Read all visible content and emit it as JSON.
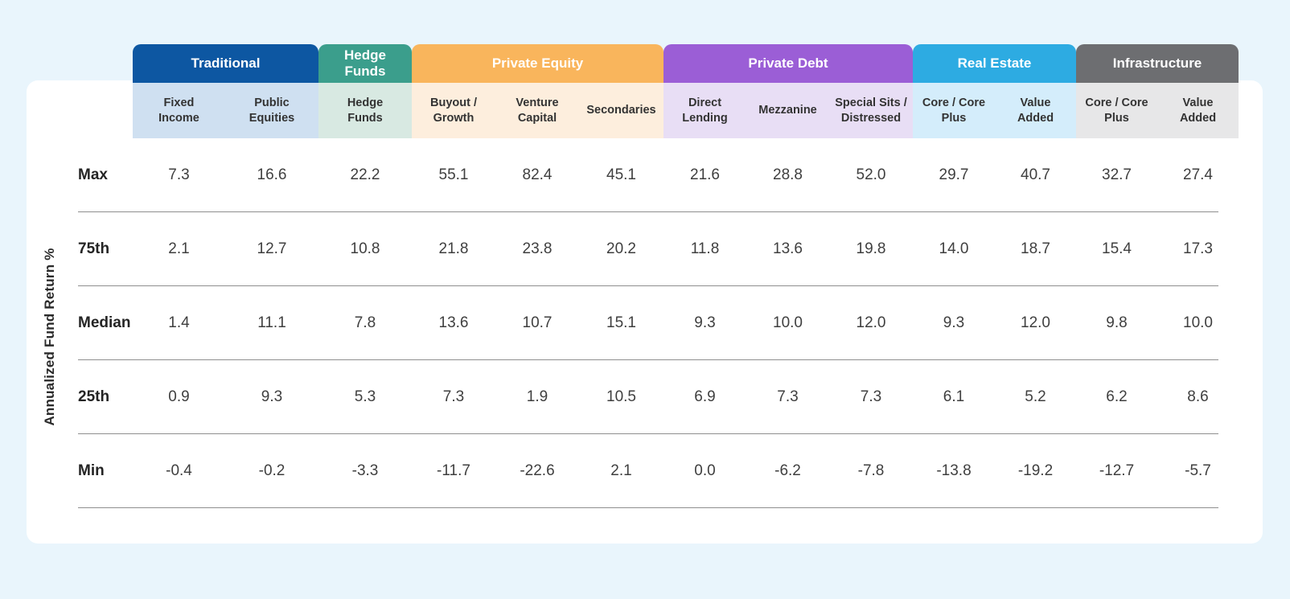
{
  "chart_data": {
    "type": "table",
    "title": "",
    "ylabel": "Annualized Fund Return %",
    "legend": "none",
    "groups": [
      {
        "id": "traditional",
        "label": "Traditional",
        "color": "#0d57a2",
        "tint": "#cfe0f1",
        "columns": [
          "Fixed\nIncome",
          "Public\nEquities"
        ]
      },
      {
        "id": "hedge-funds",
        "label": "Hedge\nFunds",
        "color": "#3b9e8c",
        "tint": "#d8e9e2",
        "columns": [
          "Hedge\nFunds"
        ]
      },
      {
        "id": "private-equity",
        "label": "Private Equity",
        "color": "#f9b55c",
        "tint": "#fdeedd",
        "columns": [
          "Buyout /\nGrowth",
          "Venture\nCapital",
          "Secondaries"
        ]
      },
      {
        "id": "private-debt",
        "label": "Private Debt",
        "color": "#9b5ed6",
        "tint": "#e8def5",
        "columns": [
          "Direct\nLending",
          "Mezzanine",
          "Special Sits /\nDistressed"
        ]
      },
      {
        "id": "real-estate",
        "label": "Real Estate",
        "color": "#2dabe2",
        "tint": "#d4edfb",
        "columns": [
          "Core / Core\nPlus",
          "Value\nAdded"
        ]
      },
      {
        "id": "infrastructure",
        "label": "Infrastructure",
        "color": "#6d6e71",
        "tint": "#e7e7e8",
        "columns": [
          "Core / Core\nPlus",
          "Value\nAdded"
        ]
      }
    ],
    "rows": [
      {
        "label": "Max",
        "values": [
          "7.3",
          "16.6",
          "22.2",
          "55.1",
          "82.4",
          "45.1",
          "21.6",
          "28.8",
          "52.0",
          "29.7",
          "40.7",
          "32.7",
          "27.4"
        ]
      },
      {
        "label": "75th",
        "values": [
          "2.1",
          "12.7",
          "10.8",
          "21.8",
          "23.8",
          "20.2",
          "11.8",
          "13.6",
          "19.8",
          "14.0",
          "18.7",
          "15.4",
          "17.3"
        ]
      },
      {
        "label": "Median",
        "values": [
          "1.4",
          "11.1",
          "7.8",
          "13.6",
          "10.7",
          "15.1",
          "9.3",
          "10.0",
          "12.0",
          "9.3",
          "12.0",
          "9.8",
          "10.0"
        ]
      },
      {
        "label": "25th",
        "values": [
          "0.9",
          "9.3",
          "5.3",
          "7.3",
          "1.9",
          "10.5",
          "6.9",
          "7.3",
          "7.3",
          "6.1",
          "5.2",
          "6.2",
          "8.6"
        ]
      },
      {
        "label": "Min",
        "values": [
          "-0.4",
          "-0.2",
          "-3.3",
          "-11.7",
          "-22.6",
          "2.1",
          "0.0",
          "-6.2",
          "-7.8",
          "-13.8",
          "-19.2",
          "-12.7",
          "-5.7"
        ]
      }
    ]
  }
}
